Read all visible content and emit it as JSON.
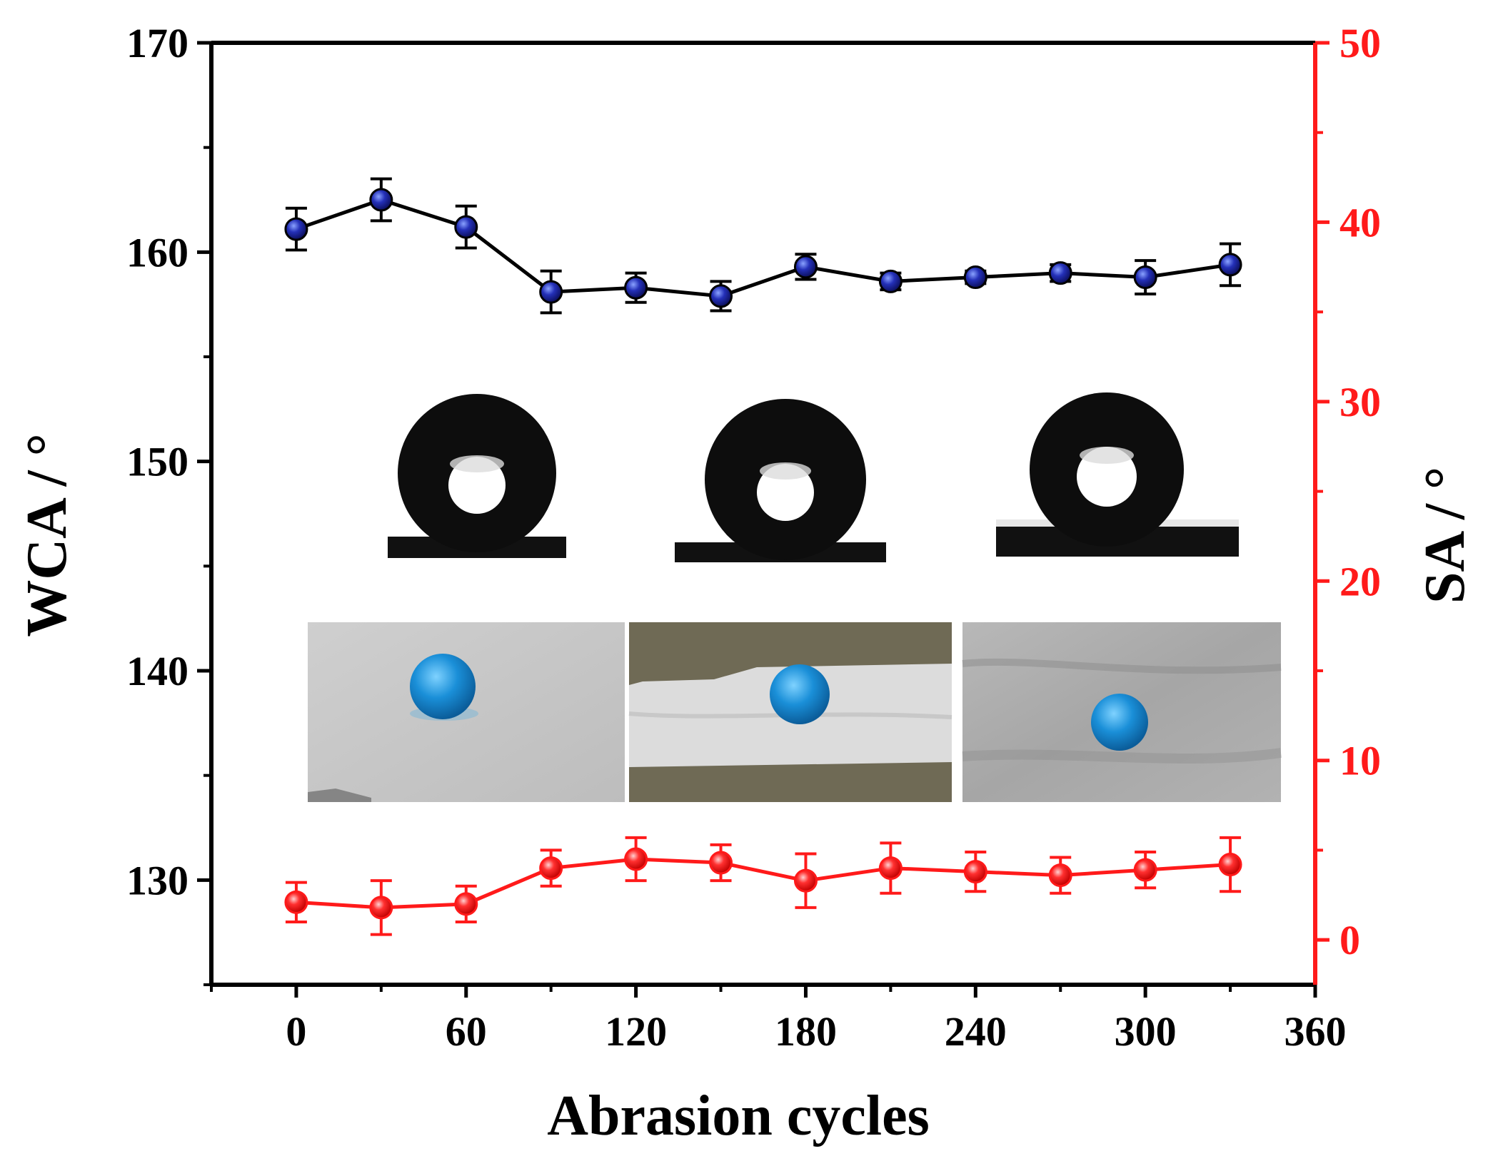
{
  "chart_data": {
    "type": "line",
    "title": "",
    "xlabel": "Abrasion cycles",
    "ylabel_left": "WCA / °",
    "ylabel_right": "SA / °",
    "xlim": [
      -30,
      360
    ],
    "ylim_left": [
      125,
      170
    ],
    "ylim_right": [
      -2.5,
      50
    ],
    "x_ticks": [
      "0",
      "60",
      "120",
      "180",
      "240",
      "300",
      "360"
    ],
    "y_left_ticks": [
      "130",
      "140",
      "150",
      "160",
      "170"
    ],
    "y_right_ticks": [
      "0",
      "10",
      "20",
      "30",
      "40",
      "50"
    ],
    "colors": {
      "wca_marker": "#1a1f9e",
      "wca_line": "#000000",
      "sa": "#ff1a1a",
      "axis_right": "#ff1a1a"
    },
    "series": [
      {
        "name": "WCA",
        "axis": "left",
        "x": [
          0,
          30,
          60,
          90,
          120,
          150,
          180,
          210,
          240,
          270,
          300,
          330
        ],
        "values": [
          161.1,
          162.5,
          161.2,
          158.1,
          158.3,
          157.9,
          159.3,
          158.6,
          158.8,
          159.0,
          158.8,
          159.4
        ],
        "errors": [
          1.0,
          1.0,
          1.0,
          1.0,
          0.7,
          0.7,
          0.6,
          0.4,
          0.3,
          0.4,
          0.8,
          1.0
        ]
      },
      {
        "name": "SA",
        "axis": "right",
        "x": [
          0,
          30,
          60,
          90,
          120,
          150,
          180,
          210,
          240,
          270,
          300,
          330
        ],
        "values": [
          2.1,
          1.8,
          2.0,
          4.0,
          4.5,
          4.3,
          3.3,
          4.0,
          3.8,
          3.6,
          3.9,
          4.2
        ],
        "errors": [
          1.1,
          1.5,
          1.0,
          1.0,
          1.2,
          1.0,
          1.5,
          1.4,
          1.1,
          1.0,
          1.0,
          1.5
        ]
      }
    ]
  },
  "insets": {
    "droplet_images": [
      "contact-angle-droplet-1",
      "contact-angle-droplet-2",
      "contact-angle-droplet-3"
    ],
    "surface_photos": [
      "surface-photo-1",
      "surface-photo-2",
      "surface-photo-3"
    ]
  }
}
